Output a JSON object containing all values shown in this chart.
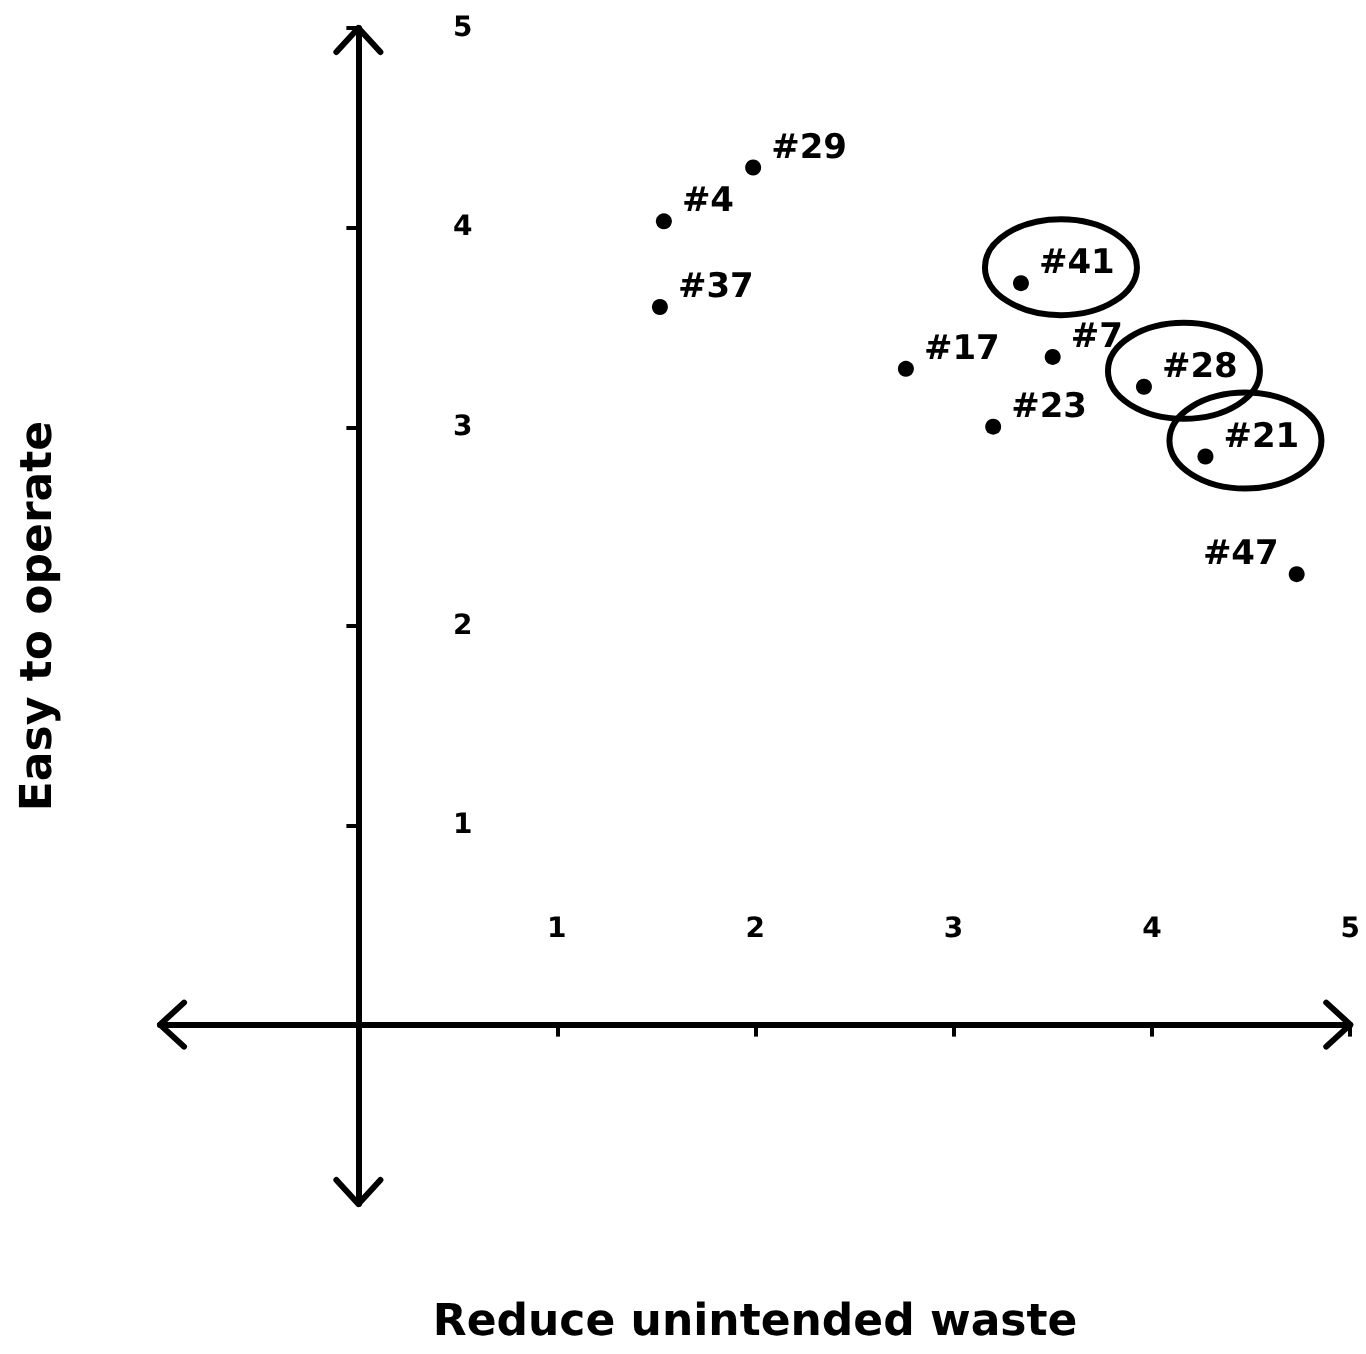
{
  "chart_data": {
    "type": "scatter",
    "xlabel": "Reduce unintended waste",
    "ylabel": "Easy to operate",
    "x": [
      1.54,
      1.52,
      1.99,
      2.76,
      3.34,
      3.5,
      3.2,
      3.96,
      4.27,
      4.73
    ],
    "series": [
      {
        "color": "#000000",
        "values": [
          4.03,
          3.6,
          4.3,
          3.29,
          3.72,
          3.35,
          3.0,
          3.2,
          2.85,
          2.26
        ]
      }
    ],
    "xlim": [
      -1,
      5
    ],
    "ylim": [
      -0.9,
      5
    ],
    "xticks": [
      1,
      2,
      3,
      4,
      5
    ],
    "yticks": [
      1,
      2,
      3,
      4,
      5
    ],
    "marker": "circle",
    "annotations": [
      {
        "text": "#4",
        "x": 1.54,
        "y": 4.03
      },
      {
        "text": "#37",
        "x": 1.52,
        "y": 3.6
      },
      {
        "text": "#29",
        "x": 1.99,
        "y": 4.3
      },
      {
        "text": "#17",
        "x": 2.76,
        "y": 3.29
      },
      {
        "text": "#41",
        "x": 3.34,
        "y": 3.72
      },
      {
        "text": "#7",
        "x": 3.5,
        "y": 3.35
      },
      {
        "text": "#23",
        "x": 3.2,
        "y": 3.0
      },
      {
        "text": "#28",
        "x": 3.96,
        "y": 3.2
      },
      {
        "text": "#21",
        "x": 4.27,
        "y": 2.85
      },
      {
        "text": "#47",
        "x": 4.73,
        "y": 2.26
      }
    ]
  }
}
